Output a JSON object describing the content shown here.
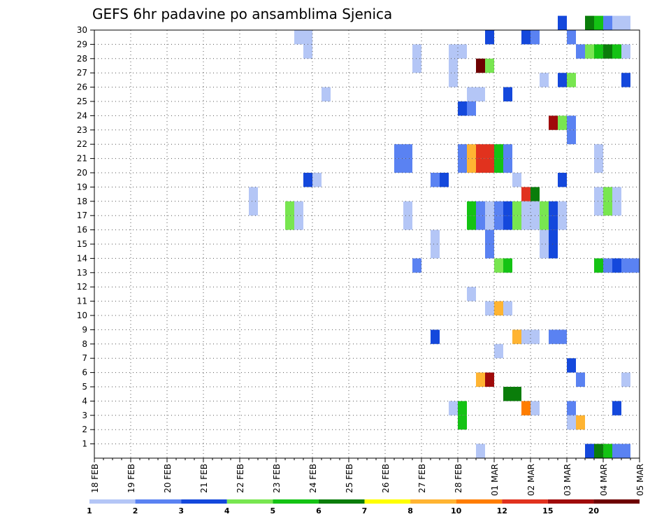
{
  "chart_data": {
    "type": "heatmap",
    "title": "GEFS 6hr padavine po ansamblima Sjenica",
    "xlabel": "",
    "ylabel": "",
    "y_ticks": [
      "1",
      "2",
      "3",
      "4",
      "5",
      "6",
      "7",
      "8",
      "9",
      "10",
      "11",
      "12",
      "13",
      "14",
      "15",
      "16",
      "17",
      "18",
      "19",
      "20",
      "21",
      "22",
      "23",
      "24",
      "25",
      "26",
      "27",
      "28",
      "29",
      "30"
    ],
    "y_range": [
      0,
      30
    ],
    "x_ticks": [
      "18 FEB",
      "19 FEB",
      "20 FEB",
      "21 FEB",
      "22 FEB",
      "23 FEB",
      "24 FEB",
      "25 FEB",
      "26 FEB",
      "27 FEB",
      "28 FEB",
      "01 MAR",
      "02 MAR",
      "03 MAR",
      "04 MAR",
      "05 MAR"
    ],
    "x_step": "6hr",
    "grid": true,
    "legend": {
      "placement": "bottom",
      "labels": [
        "1",
        "2",
        "3",
        "4",
        "5",
        "6",
        "7",
        "8",
        "10",
        "12",
        "15",
        "20"
      ],
      "colors": [
        "#b4c6f6",
        "#5a82f2",
        "#1448dc",
        "#78e650",
        "#14c314",
        "#0a7d0a",
        "#ffff00",
        "#ffb432",
        "#ff7d00",
        "#e1321e",
        "#a00a0a",
        "#6e0000"
      ]
    },
    "cells": [
      {
        "member": 30,
        "step": 51,
        "cls": 2
      },
      {
        "member": 30,
        "step": 54,
        "cls": 5
      },
      {
        "member": 30,
        "step": 55,
        "cls": 4
      },
      {
        "member": 30,
        "step": 56,
        "cls": 1
      },
      {
        "member": 30,
        "step": 57,
        "cls": 0
      },
      {
        "member": 30,
        "step": 58,
        "cls": 0
      },
      {
        "member": 29,
        "step": 22,
        "cls": 0
      },
      {
        "member": 29,
        "step": 23,
        "cls": 0
      },
      {
        "member": 29,
        "step": 43,
        "cls": 2
      },
      {
        "member": 29,
        "step": 47,
        "cls": 2
      },
      {
        "member": 29,
        "step": 48,
        "cls": 1
      },
      {
        "member": 29,
        "step": 52,
        "cls": 1
      },
      {
        "member": 28,
        "step": 23,
        "cls": 0
      },
      {
        "member": 28,
        "step": 35,
        "cls": 0
      },
      {
        "member": 28,
        "step": 39,
        "cls": 0
      },
      {
        "member": 28,
        "step": 40,
        "cls": 0
      },
      {
        "member": 28,
        "step": 53,
        "cls": 1
      },
      {
        "member": 28,
        "step": 54,
        "cls": 3
      },
      {
        "member": 28,
        "step": 55,
        "cls": 4
      },
      {
        "member": 28,
        "step": 56,
        "cls": 5
      },
      {
        "member": 28,
        "step": 57,
        "cls": 4
      },
      {
        "member": 28,
        "step": 58,
        "cls": 0
      },
      {
        "member": 27,
        "step": 35,
        "cls": 0
      },
      {
        "member": 27,
        "step": 39,
        "cls": 0
      },
      {
        "member": 27,
        "step": 42,
        "cls": 11
      },
      {
        "member": 27,
        "step": 43,
        "cls": 3
      },
      {
        "member": 26,
        "step": 39,
        "cls": 0
      },
      {
        "member": 26,
        "step": 49,
        "cls": 0
      },
      {
        "member": 26,
        "step": 51,
        "cls": 2
      },
      {
        "member": 26,
        "step": 52,
        "cls": 3
      },
      {
        "member": 26,
        "step": 58,
        "cls": 2
      },
      {
        "member": 25,
        "step": 25,
        "cls": 0
      },
      {
        "member": 25,
        "step": 41,
        "cls": 0
      },
      {
        "member": 25,
        "step": 42,
        "cls": 0
      },
      {
        "member": 25,
        "step": 45,
        "cls": 2
      },
      {
        "member": 24,
        "step": 40,
        "cls": 2
      },
      {
        "member": 24,
        "step": 41,
        "cls": 1
      },
      {
        "member": 23,
        "step": 50,
        "cls": 10
      },
      {
        "member": 23,
        "step": 51,
        "cls": 3
      },
      {
        "member": 23,
        "step": 52,
        "cls": 1
      },
      {
        "member": 22,
        "step": 52,
        "cls": 1
      },
      {
        "member": 21,
        "step": 33,
        "cls": 1
      },
      {
        "member": 21,
        "step": 34,
        "cls": 1
      },
      {
        "member": 21,
        "step": 40,
        "cls": 1
      },
      {
        "member": 21,
        "step": 41,
        "cls": 7
      },
      {
        "member": 21,
        "step": 42,
        "cls": 9
      },
      {
        "member": 21,
        "step": 43,
        "cls": 9
      },
      {
        "member": 21,
        "step": 44,
        "cls": 4
      },
      {
        "member": 21,
        "step": 45,
        "cls": 1
      },
      {
        "member": 21,
        "step": 55,
        "cls": 0
      },
      {
        "member": 20,
        "step": 33,
        "cls": 1
      },
      {
        "member": 20,
        "step": 34,
        "cls": 1
      },
      {
        "member": 20,
        "step": 40,
        "cls": 1
      },
      {
        "member": 20,
        "step": 41,
        "cls": 7
      },
      {
        "member": 20,
        "step": 42,
        "cls": 9
      },
      {
        "member": 20,
        "step": 43,
        "cls": 9
      },
      {
        "member": 20,
        "step": 44,
        "cls": 4
      },
      {
        "member": 20,
        "step": 45,
        "cls": 1
      },
      {
        "member": 20,
        "step": 55,
        "cls": 0
      },
      {
        "member": 19,
        "step": 23,
        "cls": 2
      },
      {
        "member": 19,
        "step": 24,
        "cls": 0
      },
      {
        "member": 19,
        "step": 37,
        "cls": 1
      },
      {
        "member": 19,
        "step": 38,
        "cls": 2
      },
      {
        "member": 19,
        "step": 46,
        "cls": 0
      },
      {
        "member": 19,
        "step": 51,
        "cls": 2
      },
      {
        "member": 18,
        "step": 17,
        "cls": 0
      },
      {
        "member": 18,
        "step": 47,
        "cls": 9
      },
      {
        "member": 18,
        "step": 48,
        "cls": 5
      },
      {
        "member": 18,
        "step": 55,
        "cls": 0
      },
      {
        "member": 18,
        "step": 56,
        "cls": 3
      },
      {
        "member": 18,
        "step": 57,
        "cls": 0
      },
      {
        "member": 17,
        "step": 17,
        "cls": 0
      },
      {
        "member": 17,
        "step": 21,
        "cls": 3
      },
      {
        "member": 17,
        "step": 22,
        "cls": 0
      },
      {
        "member": 17,
        "step": 34,
        "cls": 0
      },
      {
        "member": 17,
        "step": 41,
        "cls": 4
      },
      {
        "member": 17,
        "step": 42,
        "cls": 1
      },
      {
        "member": 17,
        "step": 43,
        "cls": 0
      },
      {
        "member": 17,
        "step": 44,
        "cls": 1
      },
      {
        "member": 17,
        "step": 45,
        "cls": 2
      },
      {
        "member": 17,
        "step": 46,
        "cls": 3
      },
      {
        "member": 17,
        "step": 47,
        "cls": 0
      },
      {
        "member": 17,
        "step": 48,
        "cls": 0
      },
      {
        "member": 17,
        "step": 49,
        "cls": 3
      },
      {
        "member": 17,
        "step": 50,
        "cls": 2
      },
      {
        "member": 17,
        "step": 51,
        "cls": 0
      },
      {
        "member": 17,
        "step": 55,
        "cls": 0
      },
      {
        "member": 17,
        "step": 56,
        "cls": 3
      },
      {
        "member": 17,
        "step": 57,
        "cls": 0
      },
      {
        "member": 16,
        "step": 21,
        "cls": 3
      },
      {
        "member": 16,
        "step": 22,
        "cls": 0
      },
      {
        "member": 16,
        "step": 34,
        "cls": 0
      },
      {
        "member": 16,
        "step": 41,
        "cls": 4
      },
      {
        "member": 16,
        "step": 42,
        "cls": 1
      },
      {
        "member": 16,
        "step": 43,
        "cls": 0
      },
      {
        "member": 16,
        "step": 44,
        "cls": 1
      },
      {
        "member": 16,
        "step": 45,
        "cls": 2
      },
      {
        "member": 16,
        "step": 46,
        "cls": 3
      },
      {
        "member": 16,
        "step": 47,
        "cls": 0
      },
      {
        "member": 16,
        "step": 48,
        "cls": 0
      },
      {
        "member": 16,
        "step": 49,
        "cls": 3
      },
      {
        "member": 16,
        "step": 50,
        "cls": 2
      },
      {
        "member": 16,
        "step": 51,
        "cls": 0
      },
      {
        "member": 15,
        "step": 37,
        "cls": 0
      },
      {
        "member": 15,
        "step": 43,
        "cls": 1
      },
      {
        "member": 15,
        "step": 49,
        "cls": 0
      },
      {
        "member": 15,
        "step": 50,
        "cls": 2
      },
      {
        "member": 14,
        "step": 37,
        "cls": 0
      },
      {
        "member": 14,
        "step": 43,
        "cls": 1
      },
      {
        "member": 14,
        "step": 49,
        "cls": 0
      },
      {
        "member": 14,
        "step": 50,
        "cls": 2
      },
      {
        "member": 13,
        "step": 35,
        "cls": 1
      },
      {
        "member": 13,
        "step": 44,
        "cls": 3
      },
      {
        "member": 13,
        "step": 45,
        "cls": 4
      },
      {
        "member": 13,
        "step": 55,
        "cls": 4
      },
      {
        "member": 13,
        "step": 56,
        "cls": 1
      },
      {
        "member": 13,
        "step": 57,
        "cls": 2
      },
      {
        "member": 13,
        "step": 58,
        "cls": 1
      },
      {
        "member": 13,
        "step": 59,
        "cls": 1
      },
      {
        "member": 11,
        "step": 41,
        "cls": 0
      },
      {
        "member": 10,
        "step": 43,
        "cls": 0
      },
      {
        "member": 10,
        "step": 44,
        "cls": 7
      },
      {
        "member": 10,
        "step": 45,
        "cls": 0
      },
      {
        "member": 8,
        "step": 37,
        "cls": 2
      },
      {
        "member": 8,
        "step": 46,
        "cls": 7
      },
      {
        "member": 8,
        "step": 47,
        "cls": 0
      },
      {
        "member": 8,
        "step": 48,
        "cls": 0
      },
      {
        "member": 8,
        "step": 50,
        "cls": 1
      },
      {
        "member": 8,
        "step": 51,
        "cls": 1
      },
      {
        "member": 7,
        "step": 44,
        "cls": 0
      },
      {
        "member": 6,
        "step": 52,
        "cls": 2
      },
      {
        "member": 5,
        "step": 42,
        "cls": 7
      },
      {
        "member": 5,
        "step": 43,
        "cls": 10
      },
      {
        "member": 5,
        "step": 53,
        "cls": 1
      },
      {
        "member": 5,
        "step": 58,
        "cls": 0
      },
      {
        "member": 4,
        "step": 45,
        "cls": 5
      },
      {
        "member": 4,
        "step": 46,
        "cls": 5
      },
      {
        "member": 3,
        "step": 39,
        "cls": 0
      },
      {
        "member": 3,
        "step": 40,
        "cls": 4
      },
      {
        "member": 3,
        "step": 47,
        "cls": 8
      },
      {
        "member": 3,
        "step": 48,
        "cls": 0
      },
      {
        "member": 3,
        "step": 52,
        "cls": 1
      },
      {
        "member": 3,
        "step": 57,
        "cls": 2
      },
      {
        "member": 2,
        "step": 40,
        "cls": 4
      },
      {
        "member": 2,
        "step": 52,
        "cls": 0
      },
      {
        "member": 2,
        "step": 53,
        "cls": 7
      },
      {
        "member": 0,
        "step": 42,
        "cls": 0
      },
      {
        "member": 0,
        "step": 54,
        "cls": 2
      },
      {
        "member": 0,
        "step": 55,
        "cls": 5
      },
      {
        "member": 0,
        "step": 56,
        "cls": 4
      },
      {
        "member": 0,
        "step": 57,
        "cls": 1
      },
      {
        "member": 0,
        "step": 58,
        "cls": 1
      }
    ]
  }
}
